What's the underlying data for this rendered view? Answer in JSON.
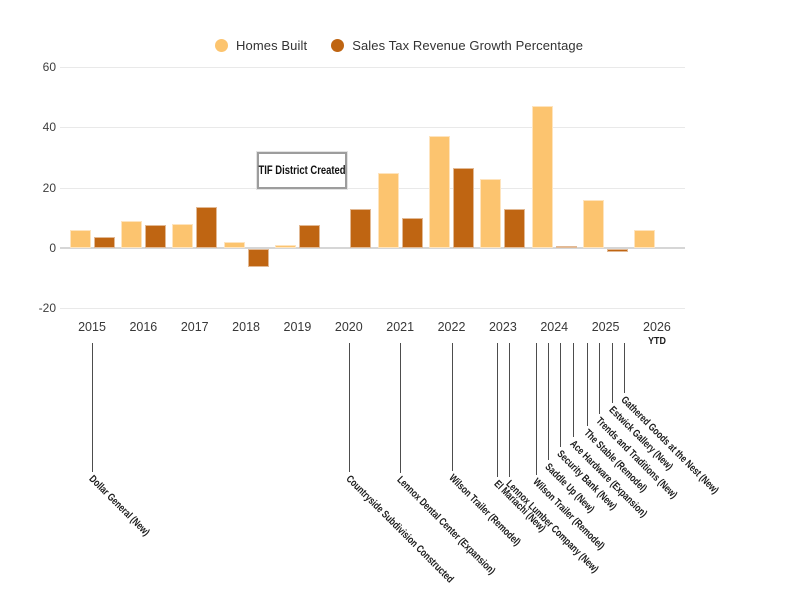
{
  "legend": [
    {
      "label": "Homes Built",
      "color": "#fcc46f"
    },
    {
      "label": "Sales Tax Revenue Growth Percentage",
      "color": "#bf6512"
    }
  ],
  "colors": {
    "homes_built": "#fcc46f",
    "sales_tax": "#bf6512",
    "gridline": "#e9e9e9",
    "axis_line": "#d6d6d6",
    "axis_text": "#3e3e3e",
    "annotation_line": "#4d4d4d",
    "annotation_text": "#1a1a1a"
  },
  "chart_data": {
    "type": "bar",
    "title": "",
    "xlabel": "",
    "ylabel": "",
    "categories": [
      "2015",
      "2016",
      "2017",
      "2018",
      "2019",
      "2020",
      "2021",
      "2022",
      "2023",
      "2024",
      "2025",
      "2026 YTD"
    ],
    "series": [
      {
        "name": "Homes Built",
        "color": "#fcc46f",
        "values": [
          6,
          9,
          8,
          2,
          1,
          0,
          25,
          37,
          23,
          47,
          16,
          6
        ]
      },
      {
        "name": "Sales Tax Revenue Growth Percentage",
        "color": "#bf6512",
        "values": [
          3.5,
          7.5,
          13.5,
          -6,
          7.5,
          13,
          10,
          26.5,
          13,
          0.5,
          -1,
          0
        ]
      }
    ],
    "ylim": [
      -20,
      60
    ],
    "yticks": [
      60,
      40,
      20,
      0,
      -20
    ],
    "grid": true,
    "legend_position": "top",
    "annotations": {
      "box_label": "TIF District Created",
      "events": [
        {
          "year": "2015",
          "label": "Dollar General (New)"
        },
        {
          "year": "2020",
          "label": "Countryside Subdivision Constructed"
        },
        {
          "year": "2021",
          "label": "Lennox Dental Center (Expansion)"
        },
        {
          "year": "2022",
          "label": "Wilson Trailer (Remodel)"
        },
        {
          "year": "2023",
          "label": "El Mariachi (New)"
        },
        {
          "year": "2023",
          "label": "Lennox Lumber Company (New)"
        },
        {
          "year": "2024",
          "label": "Wilson Trailer (Remodel)"
        },
        {
          "year": "2024",
          "label": "Saddle Up (New)"
        },
        {
          "year": "2024",
          "label": "Security Bank (New)"
        },
        {
          "year": "2024",
          "label": "Ace Hardware (Expansion)"
        },
        {
          "year": "2025",
          "label": "The Stable (Remodel)"
        },
        {
          "year": "2025",
          "label": "Trends and Traditions (New)"
        },
        {
          "year": "2025",
          "label": "Estwick Gallery (New)"
        },
        {
          "year": "2025",
          "label": "Gathered Goods at the Nest (New)"
        }
      ]
    }
  }
}
